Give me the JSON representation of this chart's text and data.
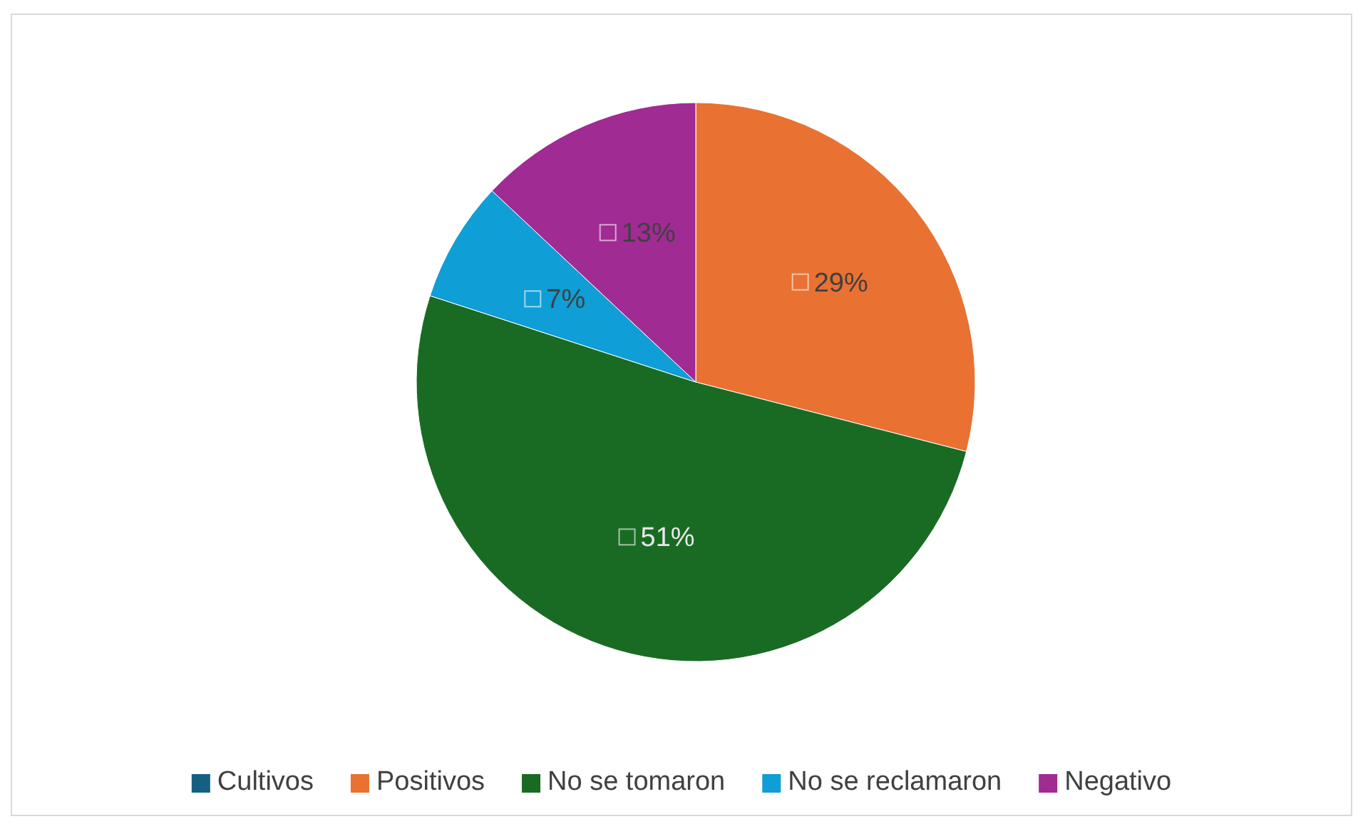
{
  "chart_data": {
    "type": "pie",
    "categories": [
      "Cultivos",
      "Positivos",
      "No se tomaron",
      "No se reclamaron",
      "Negativo"
    ],
    "values": [
      0,
      29,
      51,
      7,
      13
    ],
    "colors": [
      "#156082",
      "#e97132",
      "#196b24",
      "#0f9ed5",
      "#a02b93"
    ],
    "value_labels": [
      null,
      "29%",
      "51%",
      "7%",
      "13%"
    ],
    "legend": "bottom"
  }
}
